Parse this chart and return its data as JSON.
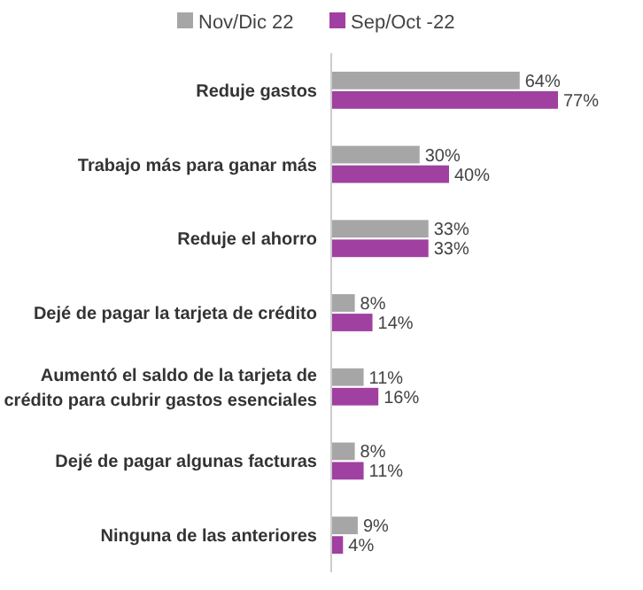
{
  "chart_data": {
    "type": "bar",
    "orientation": "horizontal",
    "categories": [
      "Reduje gastos",
      "Trabajo más para ganar más",
      "Reduje el ahorro",
      "Dejé de pagar la tarjeta de crédito",
      "Aumentó el saldo de la tarjeta de crédito para cubrir gastos esenciales",
      "Dejé de pagar algunas facturas",
      "Ninguna de las anteriores"
    ],
    "series": [
      {
        "name": "Nov/Dic 22",
        "color": "#a6a6a6",
        "values": [
          64,
          30,
          33,
          8,
          11,
          8,
          9
        ],
        "value_labels": [
          "64%",
          "30%",
          "33%",
          "8%",
          "11%",
          "8%",
          "9%"
        ]
      },
      {
        "name": "Sep/Oct -22",
        "color": "#a040a0",
        "values": [
          77,
          40,
          33,
          14,
          16,
          11,
          4
        ],
        "value_labels": [
          "77%",
          "40%",
          "33%",
          "14%",
          "16%",
          "11%",
          "4%"
        ]
      }
    ],
    "legend": "top"
  }
}
